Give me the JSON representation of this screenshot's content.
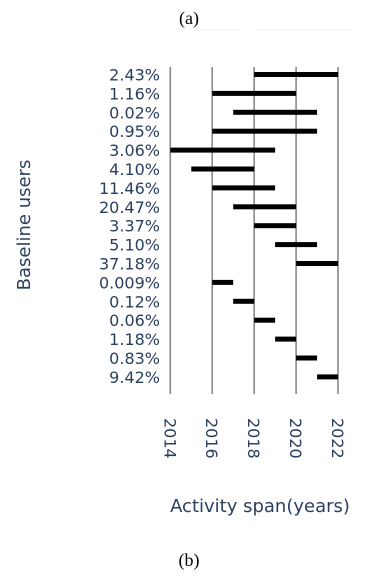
{
  "captions": {
    "top": "(a)",
    "bottom": "(b)"
  },
  "chart_data": {
    "type": "bar",
    "orientation": "horizontal-range",
    "title": "",
    "xlabel": "Activity span(years)",
    "ylabel": "Baseline users",
    "xlim": [
      2013.7,
      2023
    ],
    "xticks": [
      2014,
      2016,
      2018,
      2020,
      2022
    ],
    "grid": "vertical",
    "bar_color": "#000000",
    "label_color": "#2a3f5f",
    "categories": [
      "2.43%",
      "1.16%",
      "0.02%",
      "0.95%",
      "3.06%",
      "4.10%",
      "11.46%",
      "20.47%",
      "3.37%",
      "5.10%",
      "37.18%",
      "0.009%",
      "0.12%",
      "0.06%",
      "1.18%",
      "0.83%",
      "9.42%"
    ],
    "series": [
      {
        "start": [
          2018,
          2016,
          2017,
          2016,
          2014,
          2015,
          2016,
          2017,
          2018,
          2019,
          2020,
          2016,
          2017,
          2018,
          2019,
          2020,
          2021
        ],
        "end": [
          2022,
          2020,
          2021,
          2021,
          2019,
          2018,
          2019,
          2020,
          2020,
          2021,
          2022,
          2017,
          2018,
          2019,
          2020,
          2021,
          2022
        ]
      }
    ]
  }
}
